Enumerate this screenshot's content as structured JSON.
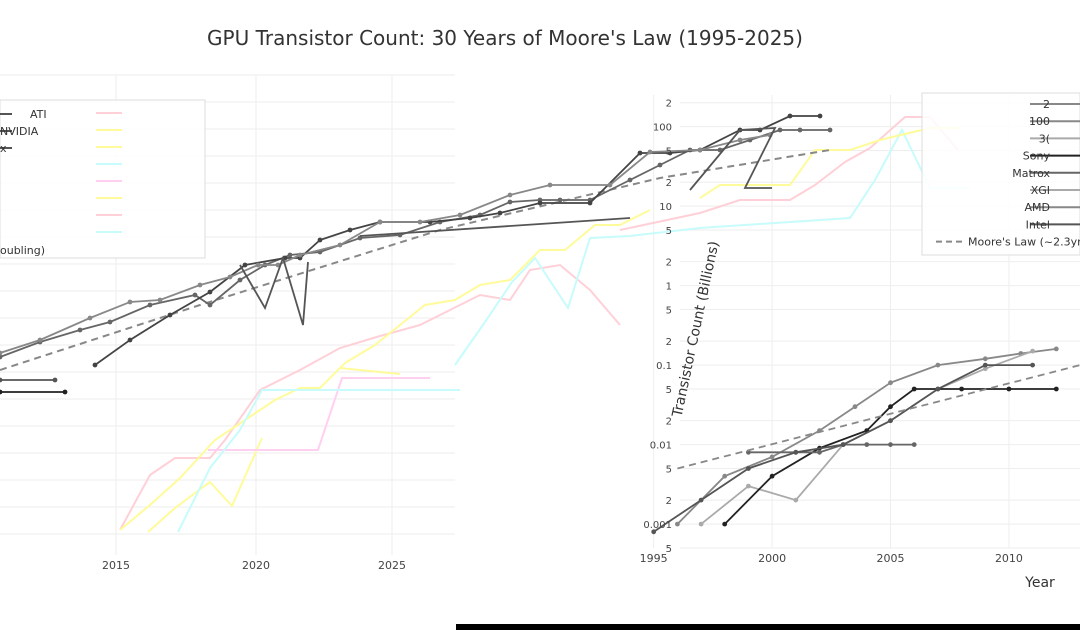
{
  "chart_data": {
    "type": "line",
    "title": "GPU Transistor Count: 30 Years of Moore's Law (1995-2025)",
    "xlabel": "Year",
    "ylabel": "Transistor Count (Billions)",
    "y_scale": "log",
    "grid": true,
    "legend_position": "top-right",
    "right_panel": {
      "xlim": [
        1994,
        2013
      ],
      "ylim": [
        0.0005,
        250
      ],
      "x_ticks": [
        "1995",
        "2000",
        "2005",
        "2010"
      ],
      "y_ticks": [
        {
          "v": 0.0005,
          "t": "5"
        },
        {
          "v": 0.001,
          "t": "0.001"
        },
        {
          "v": 0.002,
          "t": "2"
        },
        {
          "v": 0.005,
          "t": "5"
        },
        {
          "v": 0.01,
          "t": "0.01"
        },
        {
          "v": 0.02,
          "t": "2"
        },
        {
          "v": 0.05,
          "t": "5"
        },
        {
          "v": 0.1,
          "t": "0.1"
        },
        {
          "v": 0.2,
          "t": "2"
        },
        {
          "v": 0.5,
          "t": "5"
        },
        {
          "v": 1,
          "t": "1"
        },
        {
          "v": 2,
          "t": "2"
        },
        {
          "v": 5,
          "t": "5"
        },
        {
          "v": 10,
          "t": "10"
        },
        {
          "v": 20,
          "t": "2"
        },
        {
          "v": 50,
          "t": "5"
        },
        {
          "v": 100,
          "t": "100"
        },
        {
          "v": 200,
          "t": "2"
        }
      ],
      "series": [
        {
          "color": "#888888",
          "marker": true,
          "dash": false,
          "x": [
            1996,
            1998,
            2000,
            2002,
            2003.5,
            2005,
            2007,
            2009,
            2010.5,
            2012
          ],
          "y": [
            0.001,
            0.004,
            0.007,
            0.015,
            0.03,
            0.06,
            0.1,
            0.12,
            0.14,
            0.16
          ]
        },
        {
          "color": "#aaaaaa",
          "marker": true,
          "dash": false,
          "x": [
            1997,
            1999,
            2001,
            2003,
            2005,
            2007,
            2009,
            2011
          ],
          "y": [
            0.001,
            0.003,
            0.002,
            0.01,
            0.02,
            0.05,
            0.09,
            0.15
          ]
        },
        {
          "color": "#222222",
          "marker": true,
          "dash": false,
          "x": [
            1998,
            2000,
            2002,
            2004,
            2005,
            2006,
            2008,
            2010,
            2012
          ],
          "y": [
            0.001,
            0.004,
            0.009,
            0.015,
            0.03,
            0.05,
            0.05,
            0.05,
            0.05
          ]
        },
        {
          "color": "#666666",
          "marker": true,
          "dash": false,
          "x": [
            1999,
            2001,
            2002,
            2003,
            2004,
            2005,
            2006
          ],
          "y": [
            0.008,
            0.008,
            0.008,
            0.01,
            0.01,
            0.01,
            0.01
          ]
        },
        {
          "color": "#555555",
          "marker": true,
          "dash": false,
          "x": [
            1995,
            1997,
            1999,
            2001,
            2003,
            2005,
            2007,
            2009,
            2011
          ],
          "y": [
            0.0008,
            0.002,
            0.005,
            0.008,
            0.01,
            0.02,
            0.05,
            0.1,
            0.1
          ]
        },
        {
          "color": "#888888",
          "marker": false,
          "dash": true,
          "x": [
            1996,
            2013
          ],
          "y": [
            0.005,
            0.1
          ]
        }
      ],
      "legend": [
        {
          "label": "2",
          "color": "#888888",
          "dash": false
        },
        {
          "label": "100",
          "color": "#888888",
          "dash": false
        },
        {
          "label": "3(",
          "color": "#aaaaaa",
          "dash": false
        },
        {
          "label": "Sony",
          "color": "#222222",
          "dash": false
        },
        {
          "label": "Matrox",
          "color": "#666666",
          "dash": false
        },
        {
          "label": "XGI",
          "color": "#aaaaaa",
          "dash": false
        },
        {
          "label": "AMD",
          "color": "#888888",
          "dash": false
        },
        {
          "label": "Intel",
          "color": "#555555",
          "dash": false
        },
        {
          "label": "Moore's Law (~2.3yr",
          "color": "#888888",
          "dash": true
        }
      ]
    },
    "left_panel": {
      "x_ticks": [
        "2015",
        "2020",
        "2025"
      ],
      "legend": [
        "ATI",
        "NVIDIA",
        "x"
      ],
      "legend_note": "oubling)",
      "pastel_lines": [
        {
          "color": "#ffd0d8",
          "pts": [
            [
              120,
              530
            ],
            [
              150,
              475
            ],
            [
              175,
              458
            ],
            [
              210,
              458
            ],
            [
              225,
              440
            ],
            [
              260,
              390
            ],
            [
              300,
              370
            ],
            [
              340,
              348
            ],
            [
              380,
              336
            ],
            [
              420,
              325
            ],
            [
              450,
              310
            ],
            [
              480,
              295
            ],
            [
              510,
              300
            ],
            [
              530,
              270
            ],
            [
              560,
              265
            ],
            [
              590,
              290
            ],
            [
              620,
              325
            ]
          ]
        },
        {
          "color": "#fffb9a",
          "pts": [
            [
              120,
              530
            ],
            [
              150,
              505
            ],
            [
              180,
              478
            ],
            [
              215,
              440
            ],
            [
              245,
              420
            ],
            [
              275,
              400
            ],
            [
              300,
              388
            ],
            [
              320,
              388
            ],
            [
              345,
              363
            ],
            [
              375,
              345
            ],
            [
              400,
              325
            ],
            [
              425,
              305
            ],
            [
              455,
              300
            ],
            [
              480,
              285
            ],
            [
              510,
              280
            ],
            [
              540,
              250
            ],
            [
              565,
              250
            ],
            [
              595,
              225
            ],
            [
              620,
              225
            ],
            [
              650,
              210
            ]
          ]
        },
        {
          "color": "#fffb9a",
          "pts": [
            [
              148,
              532
            ],
            [
              175,
              508
            ],
            [
              210,
              482
            ],
            [
              232,
              506
            ],
            [
              262,
              438
            ]
          ]
        },
        {
          "color": "#fffb9a",
          "pts": [
            [
              340,
              368
            ],
            [
              400,
              374
            ]
          ]
        },
        {
          "color": "#ffd0f0",
          "pts": [
            [
              208,
              450
            ],
            [
              318,
              450
            ],
            [
              342,
              378
            ],
            [
              430,
              378
            ]
          ]
        },
        {
          "color": "#c8fbfb",
          "pts": [
            [
              178,
              532
            ],
            [
              210,
              468
            ],
            [
              240,
              430
            ],
            [
              262,
              390
            ],
            [
              310,
              390
            ],
            [
              350,
              390
            ],
            [
              460,
              390
            ]
          ]
        },
        {
          "color": "#c8fbfb",
          "pts": [
            [
              455,
              365
            ],
            [
              485,
              322
            ],
            [
              512,
              282
            ],
            [
              535,
              258
            ],
            [
              568,
              308
            ],
            [
              590,
              238
            ],
            [
              630,
              236
            ],
            [
              700,
              228
            ],
            [
              790,
              222
            ],
            [
              850,
              218
            ],
            [
              875,
              180
            ],
            [
              902,
              130
            ],
            [
              930,
              188
            ],
            [
              970,
              188
            ]
          ]
        },
        {
          "color": "#ffd0d8",
          "pts": [
            [
              620,
              230
            ],
            [
              700,
              213
            ],
            [
              740,
              200
            ],
            [
              790,
              200
            ],
            [
              815,
              185
            ],
            [
              845,
              162
            ],
            [
              870,
              148
            ],
            [
              905,
              117
            ],
            [
              930,
              117
            ],
            [
              958,
              150
            ]
          ]
        },
        {
          "color": "#fffb9a",
          "pts": [
            [
              700,
              198
            ],
            [
              720,
              185
            ],
            [
              745,
              185
            ],
            [
              790,
              185
            ],
            [
              815,
              150
            ],
            [
              850,
              150
            ],
            [
              880,
              140
            ],
            [
              930,
              128
            ],
            [
              960,
              128
            ]
          ]
        }
      ],
      "gray_lines": [
        {
          "color": "#666666",
          "marker": true,
          "pts": [
            [
              0,
              357
            ],
            [
              40,
              342
            ],
            [
              80,
              330
            ],
            [
              110,
              322
            ],
            [
              150,
              305
            ],
            [
              195,
              295
            ],
            [
              210,
              305
            ],
            [
              240,
              280
            ],
            [
              265,
              265
            ],
            [
              290,
              255
            ],
            [
              320,
              252
            ],
            [
              360,
              238
            ],
            [
              400,
              235
            ],
            [
              440,
              222
            ],
            [
              480,
              215
            ],
            [
              510,
              202
            ],
            [
              540,
              200
            ],
            [
              560,
              200
            ],
            [
              590,
              200
            ],
            [
              630,
              180
            ],
            [
              660,
              165
            ],
            [
              690,
              150
            ],
            [
              720,
              150
            ],
            [
              750,
              140
            ],
            [
              780,
              130
            ],
            [
              800,
              130
            ],
            [
              830,
              130
            ]
          ]
        },
        {
          "color": "#444444",
          "marker": true,
          "pts": [
            [
              95,
              365
            ],
            [
              130,
              340
            ],
            [
              170,
              315
            ],
            [
              210,
              292
            ],
            [
              245,
              265
            ],
            [
              285,
              258
            ],
            [
              300,
              258
            ],
            [
              320,
              240
            ],
            [
              350,
              230
            ],
            [
              380,
              222
            ],
            [
              430,
              222
            ],
            [
              470,
              218
            ],
            [
              500,
              213
            ],
            [
              540,
              203
            ],
            [
              590,
              203
            ],
            [
              640,
              153
            ],
            [
              670,
              153
            ],
            [
              700,
              150
            ],
            [
              740,
              130
            ],
            [
              760,
              130
            ],
            [
              790,
              116
            ],
            [
              820,
              116
            ]
          ]
        },
        {
          "color": "#888888",
          "marker": true,
          "pts": [
            [
              0,
              353
            ],
            [
              40,
              340
            ],
            [
              90,
              318
            ],
            [
              130,
              302
            ],
            [
              160,
              300
            ],
            [
              200,
              285
            ],
            [
              230,
              277
            ],
            [
              258,
              265
            ],
            [
              278,
              265
            ],
            [
              300,
              255
            ],
            [
              340,
              245
            ],
            [
              380,
              222
            ],
            [
              420,
              222
            ],
            [
              460,
              215
            ],
            [
              510,
              195
            ],
            [
              550,
              185
            ],
            [
              610,
              185
            ],
            [
              650,
              152
            ],
            [
              700,
              150
            ],
            [
              740,
              140
            ],
            [
              770,
              135
            ]
          ]
        },
        {
          "color": "#555555",
          "marker": true,
          "pts": [
            [
              0,
              380
            ],
            [
              55,
              380
            ]
          ]
        },
        {
          "color": "#222222",
          "marker": true,
          "pts": [
            [
              0,
              392
            ],
            [
              65,
              392
            ]
          ]
        },
        {
          "color": "#555555",
          "marker": false,
          "pts": [
            [
              240,
              265
            ],
            [
              265,
              308
            ],
            [
              283,
              258
            ],
            [
              303,
              325
            ],
            [
              308,
              262
            ]
          ]
        },
        {
          "color": "#555555",
          "marker": false,
          "pts": [
            [
              360,
              236
            ],
            [
              630,
              218
            ]
          ]
        },
        {
          "color": "#555555",
          "marker": false,
          "pts": [
            [
              690,
              190
            ],
            [
              740,
              130
            ],
            [
              775,
              128
            ],
            [
              745,
              188
            ],
            [
              772,
              188
            ]
          ]
        }
      ],
      "moore_line": {
        "color": "#888888",
        "pts": [
          [
            0,
            370
          ],
          [
            200,
            305
          ],
          [
            440,
            230
          ],
          [
            660,
            178
          ],
          [
            830,
            150
          ]
        ]
      }
    }
  }
}
